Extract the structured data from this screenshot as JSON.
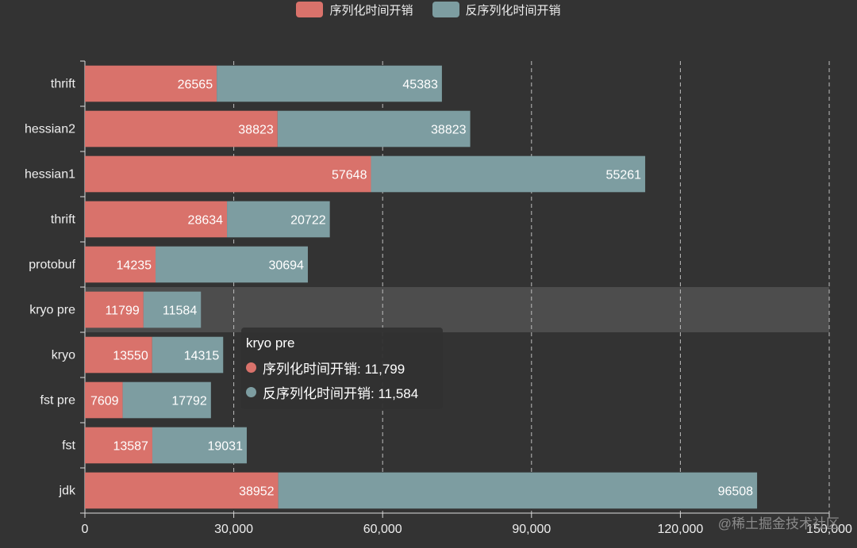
{
  "chart_data": {
    "type": "bar",
    "orientation": "horizontal",
    "stacked": true,
    "categories": [
      "thrift",
      "hessian2",
      "hessian1",
      "thrift",
      "protobuf",
      "kryo pre",
      "kryo",
      "fst pre",
      "fst",
      "jdk"
    ],
    "series": [
      {
        "name": "序列化时间开销",
        "color": "#d9726b",
        "values": [
          26565,
          38823,
          57648,
          28634,
          14235,
          11799,
          13550,
          7609,
          13587,
          38952
        ]
      },
      {
        "name": "反序列化时间开销",
        "color": "#7d9da1",
        "values": [
          45383,
          38823,
          55261,
          20722,
          30694,
          11584,
          14315,
          17792,
          19031,
          96508
        ]
      }
    ],
    "xlim": [
      0,
      150000
    ],
    "x_ticks": [
      "0",
      "30,000",
      "60,000",
      "90,000",
      "120,000",
      "150,000"
    ],
    "x_tick_values": [
      0,
      30000,
      60000,
      90000,
      120000,
      150000
    ],
    "grid": "vertical-dashed",
    "legend": "top",
    "highlighted_category_index": 5
  },
  "tooltip": {
    "title": "kryo pre",
    "rows": [
      {
        "label": "序列化时间开销: 11,799",
        "color": "#d9726b"
      },
      {
        "label": "反序列化时间开销: 11,584",
        "color": "#7d9da1"
      }
    ]
  },
  "watermark": "@稀土掘金技术社区"
}
